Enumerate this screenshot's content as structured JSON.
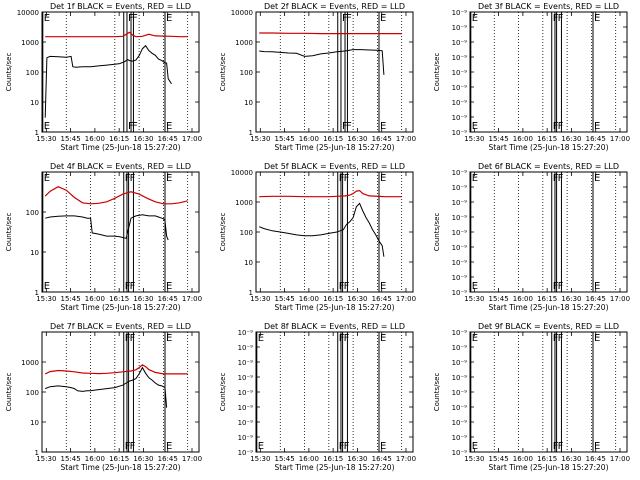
{
  "figure": {
    "x_ticks": [
      "15:30",
      "15:45",
      "16:00",
      "16:15",
      "16:30",
      "16:45",
      "17:00"
    ],
    "xlabel": "Start Time (25-Jun-18 15:27:20)",
    "ylabel": "Counts/sec",
    "colors": {
      "events": "#000000",
      "lld": "#cc0000"
    }
  },
  "chart_data": [
    {
      "type": "line",
      "title": "Det 1f BLACK = Events, RED = LLD",
      "xlabel": "Start Time (25-Jun-18 15:27:20)",
      "ylabel": "Counts/sec",
      "x_unit": "minutes since 15:27:20",
      "yscale": "log",
      "ylim": [
        1,
        10000
      ],
      "y_ticks": [
        "1",
        "10",
        "100",
        "1000",
        "10000"
      ],
      "markers": [
        {
          "x": 0.5,
          "label": "E"
        },
        {
          "x": 50.5,
          "label": ""
        },
        {
          "x": 52.5,
          "label": "F"
        },
        {
          "x": 55.0,
          "label": "F"
        },
        {
          "x": 56.5,
          "label": ""
        },
        {
          "x": 76.0,
          "label": "E"
        }
      ],
      "dotted_x": [
        15,
        45,
        60,
        75,
        90
      ],
      "series": [
        {
          "name": "Events",
          "color": "#000000",
          "x": [
            2,
            3,
            5,
            10,
            15,
            18,
            19,
            21,
            25,
            30,
            35,
            40,
            45,
            48,
            51,
            53,
            54,
            56,
            58,
            60,
            62,
            64,
            66,
            68,
            70,
            72,
            74,
            75,
            76,
            77,
            78,
            80
          ],
          "y": [
            3,
            300,
            330,
            320,
            310,
            330,
            150,
            145,
            150,
            150,
            160,
            170,
            180,
            190,
            220,
            260,
            240,
            230,
            250,
            350,
            600,
            750,
            520,
            420,
            360,
            270,
            240,
            220,
            200,
            200,
            60,
            40
          ]
        },
        {
          "name": "LLD",
          "color": "#cc0000",
          "x": [
            2,
            10,
            20,
            30,
            40,
            45,
            50,
            52,
            54,
            56,
            58,
            62,
            66,
            70,
            80,
            85,
            90
          ],
          "y": [
            1500,
            1500,
            1500,
            1500,
            1500,
            1500,
            1550,
            1800,
            2100,
            1700,
            1500,
            1550,
            1800,
            1600,
            1550,
            1500,
            1500
          ]
        }
      ]
    },
    {
      "type": "line",
      "title": "Det 2f BLACK = Events, RED = LLD",
      "xlabel": "Start Time (25-Jun-18 15:27:20)",
      "ylabel": "Counts/sec",
      "x_unit": "minutes since 15:27:20",
      "yscale": "log",
      "ylim": [
        1,
        10000
      ],
      "y_ticks": [
        "1",
        "10",
        "100",
        "1000",
        "10000"
      ],
      "markers": [
        {
          "x": 50.5,
          "label": ""
        },
        {
          "x": 52.5,
          "label": "F"
        },
        {
          "x": 55.0,
          "label": "F"
        },
        {
          "x": 56.5,
          "label": ""
        },
        {
          "x": 76.0,
          "label": "E"
        }
      ],
      "dotted_x": [
        15,
        30,
        45,
        60,
        75,
        90
      ],
      "series": [
        {
          "name": "Events",
          "color": "#000000",
          "x": [
            2,
            5,
            10,
            15,
            20,
            25,
            30,
            35,
            40,
            45,
            50,
            55,
            60,
            65,
            70,
            75,
            78,
            79
          ],
          "y": [
            500,
            480,
            470,
            450,
            430,
            420,
            330,
            350,
            400,
            430,
            470,
            500,
            560,
            560,
            540,
            530,
            510,
            80
          ]
        },
        {
          "name": "LLD",
          "color": "#cc0000",
          "x": [
            2,
            10,
            20,
            30,
            40,
            50,
            60,
            70,
            80,
            90
          ],
          "y": [
            2000,
            2000,
            1950,
            1950,
            1900,
            1900,
            1900,
            1900,
            1900,
            1900
          ]
        }
      ]
    },
    {
      "type": "line",
      "title": "Det 3f BLACK = Events, RED = LLD",
      "xlabel": "Start Time (25-Jun-18 15:27:20)",
      "ylabel": "Counts/sec",
      "x_unit": "minutes since 15:27:20",
      "yscale": "log",
      "ylim": [
        1e-09,
        1e-08
      ],
      "y_ticks": [
        "10⁻⁹",
        "10⁻⁹",
        "10⁻⁹",
        "10⁻⁹",
        "10⁻⁹",
        "10⁻⁹",
        "10⁻⁹",
        "10⁻⁹",
        "10⁻⁹"
      ],
      "markers": [
        {
          "x": 0.5,
          "label": "E"
        },
        {
          "x": 50.5,
          "label": "F"
        },
        {
          "x": 52.5,
          "label": ""
        },
        {
          "x": 53.5,
          "label": "F"
        },
        {
          "x": 56.5,
          "label": ""
        },
        {
          "x": 76.0,
          "label": "E"
        }
      ],
      "dotted_x": [
        15,
        30,
        45,
        60,
        75,
        90
      ],
      "series": []
    },
    {
      "type": "line",
      "title": "Det 4f BLACK = Events, RED = LLD",
      "xlabel": "Start Time (25-Jun-18 15:27:20)",
      "ylabel": "Counts/sec",
      "x_unit": "minutes since 15:27:20",
      "yscale": "log",
      "ylim": [
        1,
        1000
      ],
      "y_ticks": [
        "1",
        "10",
        "100"
      ],
      "markers": [
        {
          "x": 0.5,
          "label": "E"
        },
        {
          "x": 50.5,
          "label": "F"
        },
        {
          "x": 52.5,
          "label": ""
        },
        {
          "x": 53.5,
          "label": "F"
        },
        {
          "x": 56.5,
          "label": ""
        },
        {
          "x": 76.0,
          "label": "E"
        }
      ],
      "dotted_x": [
        15,
        30,
        45,
        60,
        75,
        90
      ],
      "series": [
        {
          "name": "Events",
          "color": "#000000",
          "x": [
            2,
            5,
            10,
            15,
            20,
            25,
            28,
            30,
            31,
            35,
            40,
            45,
            48,
            50,
            52,
            55,
            58,
            62,
            66,
            70,
            72,
            74,
            75,
            76,
            77,
            78
          ],
          "y": [
            70,
            75,
            78,
            80,
            80,
            75,
            70,
            70,
            30,
            28,
            25,
            25,
            24,
            23,
            22,
            70,
            80,
            85,
            80,
            80,
            75,
            70,
            68,
            60,
            25,
            20
          ]
        },
        {
          "name": "LLD",
          "color": "#cc0000",
          "x": [
            2,
            5,
            10,
            15,
            20,
            25,
            30,
            35,
            40,
            45,
            50,
            55,
            60,
            65,
            70,
            75,
            80,
            85,
            90
          ],
          "y": [
            250,
            330,
            430,
            350,
            230,
            170,
            160,
            165,
            180,
            220,
            280,
            320,
            280,
            220,
            180,
            160,
            160,
            170,
            190
          ]
        }
      ]
    },
    {
      "type": "line",
      "title": "Det 5f BLACK = Events, RED = LLD",
      "xlabel": "Start Time (25-Jun-18 15:27:20)",
      "ylabel": "Counts/sec",
      "x_unit": "minutes since 15:27:20",
      "yscale": "log",
      "ylim": [
        1,
        10000
      ],
      "y_ticks": [
        "1",
        "10",
        "100",
        "1000",
        "10000"
      ],
      "markers": [
        {
          "x": 50.5,
          "label": "F"
        },
        {
          "x": 52.5,
          "label": ""
        },
        {
          "x": 53.5,
          "label": "F"
        },
        {
          "x": 56.5,
          "label": ""
        },
        {
          "x": 76.0,
          "label": "E"
        }
      ],
      "dotted_x": [
        15,
        30,
        45,
        60,
        75,
        90
      ],
      "series": [
        {
          "name": "Events",
          "color": "#000000",
          "x": [
            2,
            5,
            10,
            15,
            20,
            25,
            30,
            35,
            40,
            45,
            50,
            52,
            54,
            56,
            58,
            60,
            62,
            64,
            66,
            68,
            70,
            72,
            74,
            76,
            78,
            79
          ],
          "y": [
            150,
            130,
            110,
            100,
            90,
            80,
            75,
            75,
            80,
            90,
            100,
            110,
            120,
            180,
            220,
            300,
            700,
            900,
            500,
            300,
            200,
            120,
            80,
            50,
            35,
            15
          ]
        },
        {
          "name": "LLD",
          "color": "#cc0000",
          "x": [
            2,
            10,
            20,
            30,
            40,
            45,
            50,
            55,
            58,
            60,
            62,
            64,
            66,
            70,
            80,
            90
          ],
          "y": [
            1500,
            1550,
            1550,
            1500,
            1500,
            1500,
            1550,
            1600,
            1700,
            1900,
            2300,
            2400,
            1900,
            1600,
            1500,
            1500
          ]
        }
      ]
    },
    {
      "type": "line",
      "title": "Det 6f BLACK = Events, RED = LLD",
      "xlabel": "Start Time (25-Jun-18 15:27:20)",
      "ylabel": "Counts/sec",
      "x_unit": "minutes since 15:27:20",
      "yscale": "log",
      "ylim": [
        1e-09,
        1e-08
      ],
      "y_ticks": [
        "10⁻⁹",
        "10⁻⁹",
        "10⁻⁹",
        "10⁻⁹",
        "10⁻⁹",
        "10⁻⁹",
        "10⁻⁹",
        "10⁻⁹",
        "10⁻⁹"
      ],
      "markers": [
        {
          "x": 0.5,
          "label": "E"
        },
        {
          "x": 50.5,
          "label": "F"
        },
        {
          "x": 52.5,
          "label": ""
        },
        {
          "x": 53.5,
          "label": "F"
        },
        {
          "x": 56.5,
          "label": ""
        },
        {
          "x": 76.0,
          "label": "E"
        }
      ],
      "dotted_x": [
        15,
        30,
        45,
        60,
        75,
        90
      ],
      "series": []
    },
    {
      "type": "line",
      "title": "Det 7f BLACK = Events, RED = LLD",
      "xlabel": "Start Time (25-Jun-18 15:27:20)",
      "ylabel": "Counts/sec",
      "x_unit": "minutes since 15:27:20",
      "yscale": "log",
      "ylim": [
        1,
        10000
      ],
      "y_ticks": [
        "1",
        "10",
        "100",
        "1000"
      ],
      "markers": [
        {
          "x": 50.5,
          "label": "F"
        },
        {
          "x": 52.5,
          "label": ""
        },
        {
          "x": 53.5,
          "label": "F"
        },
        {
          "x": 56.5,
          "label": ""
        },
        {
          "x": 76.0,
          "label": "E"
        }
      ],
      "dotted_x": [
        15,
        30,
        45,
        60,
        75,
        90
      ],
      "series": [
        {
          "name": "Events",
          "color": "#000000",
          "x": [
            2,
            5,
            10,
            15,
            18,
            20,
            22,
            25,
            28,
            30,
            35,
            40,
            45,
            50,
            52,
            54,
            56,
            58,
            60,
            62,
            64,
            66,
            68,
            70,
            72,
            74,
            75,
            76,
            77
          ],
          "y": [
            130,
            150,
            160,
            150,
            140,
            130,
            110,
            105,
            110,
            110,
            120,
            130,
            140,
            170,
            200,
            230,
            250,
            280,
            400,
            650,
            420,
            300,
            250,
            200,
            170,
            160,
            150,
            140,
            30
          ]
        },
        {
          "name": "LLD",
          "color": "#cc0000",
          "x": [
            2,
            5,
            10,
            15,
            20,
            25,
            30,
            35,
            40,
            45,
            50,
            55,
            58,
            60,
            62,
            64,
            66,
            70,
            75,
            80,
            90
          ],
          "y": [
            400,
            480,
            520,
            500,
            470,
            430,
            420,
            410,
            420,
            440,
            470,
            500,
            550,
            650,
            800,
            700,
            560,
            450,
            400,
            400,
            400
          ]
        }
      ]
    },
    {
      "type": "line",
      "title": "Det 8f BLACK = Events, RED = LLD",
      "xlabel": "Start Time (25-Jun-18 15:27:20)",
      "ylabel": "Counts/sec",
      "x_unit": "minutes since 15:27:20",
      "yscale": "log",
      "ylim": [
        1e-09,
        1e-08
      ],
      "y_ticks": [
        "10⁻⁹",
        "10⁻⁹",
        "10⁻⁹",
        "10⁻⁹",
        "10⁻⁹",
        "10⁻⁹",
        "10⁻⁹",
        "10⁻⁹",
        "10⁻⁹"
      ],
      "markers": [
        {
          "x": 0.5,
          "label": "E"
        },
        {
          "x": 50.5,
          "label": "F"
        },
        {
          "x": 52.5,
          "label": ""
        },
        {
          "x": 53.5,
          "label": "F"
        },
        {
          "x": 56.5,
          "label": ""
        },
        {
          "x": 76.0,
          "label": "E"
        }
      ],
      "dotted_x": [
        15,
        30,
        45,
        60,
        75,
        90
      ],
      "series": []
    },
    {
      "type": "line",
      "title": "Det 9f BLACK = Events, RED = LLD",
      "xlabel": "Start Time (25-Jun-18 15:27:20)",
      "ylabel": "Counts/sec",
      "x_unit": "minutes since 15:27:20",
      "yscale": "log",
      "ylim": [
        1e-09,
        1e-08
      ],
      "y_ticks": [
        "10⁻⁹",
        "10⁻⁹",
        "10⁻⁹",
        "10⁻⁹",
        "10⁻⁹",
        "10⁻⁹",
        "10⁻⁹",
        "10⁻⁹",
        "10⁻⁹"
      ],
      "markers": [
        {
          "x": 0.5,
          "label": "E"
        },
        {
          "x": 50.5,
          "label": "F"
        },
        {
          "x": 52.5,
          "label": ""
        },
        {
          "x": 53.5,
          "label": "F"
        },
        {
          "x": 56.5,
          "label": ""
        },
        {
          "x": 76.0,
          "label": "E"
        }
      ],
      "dotted_x": [
        15,
        30,
        45,
        60,
        75,
        90
      ],
      "series": []
    }
  ]
}
